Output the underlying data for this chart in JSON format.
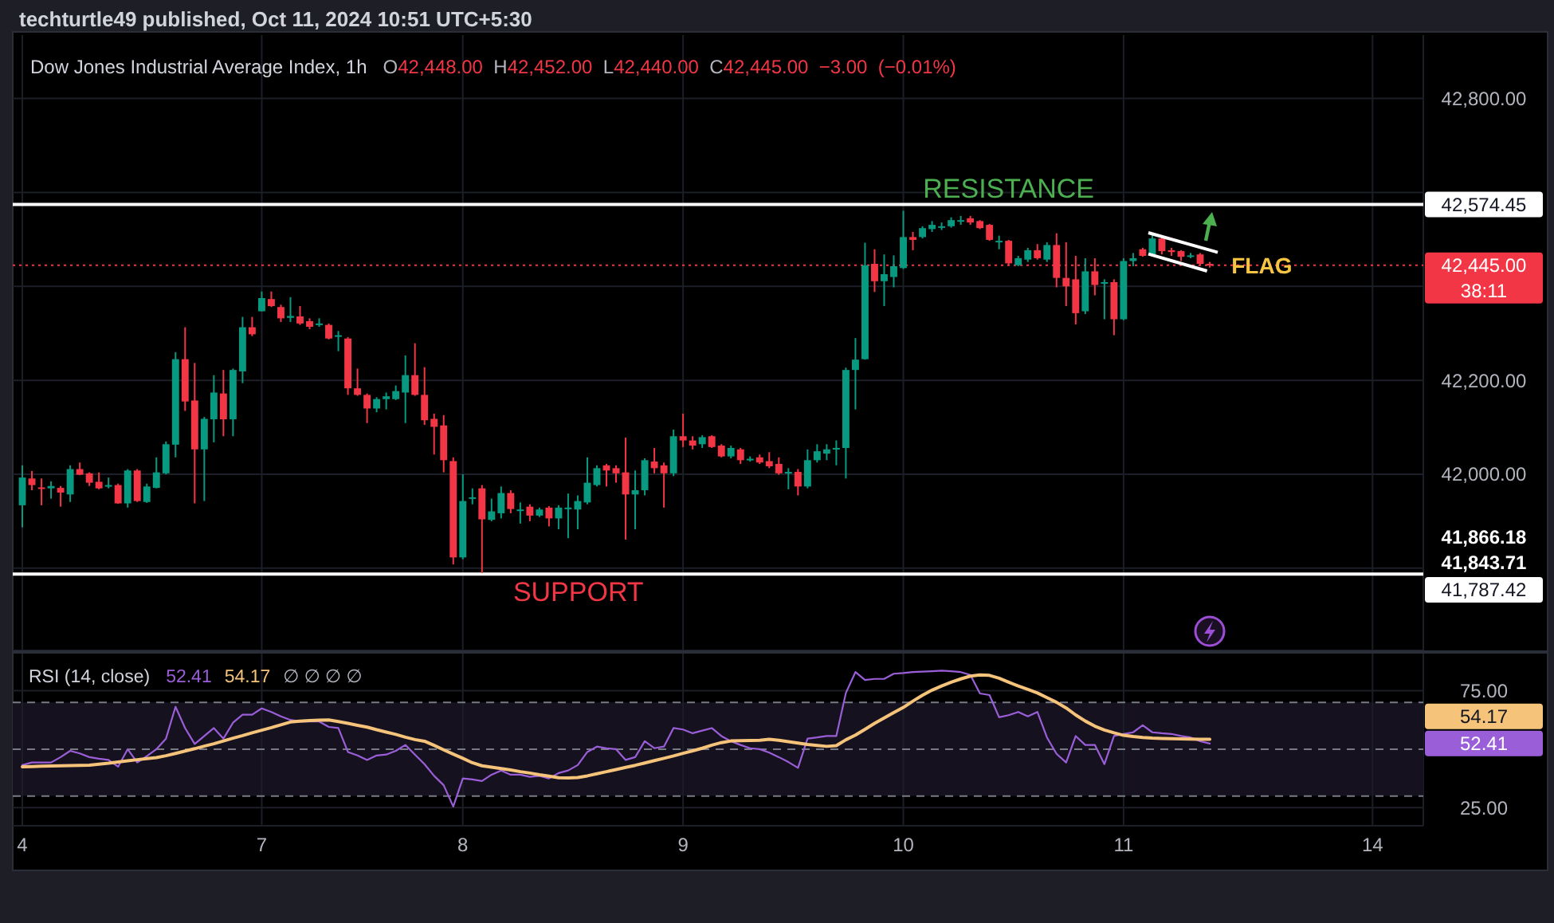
{
  "chart_data": [
    {
      "type": "candlestick",
      "title": "Dow Jones Industrial Average Index, 1h",
      "subtitle": "O42,448.00 H42,452.00 L42,440.00 C42,445.00 −3.00 (−0.01%)",
      "categories": [
        "4",
        null,
        null,
        null,
        null,
        null,
        null,
        null,
        null,
        null,
        null,
        null,
        null,
        null,
        null,
        null,
        null,
        null,
        null,
        null,
        null,
        null,
        null,
        null,
        null,
        "7",
        null,
        null,
        null,
        null,
        null,
        null,
        null,
        null,
        null,
        null,
        null,
        null,
        null,
        null,
        null,
        null,
        null,
        null,
        null,
        null,
        "8",
        null,
        null,
        null,
        null,
        null,
        null,
        null,
        null,
        null,
        null,
        null,
        null,
        null,
        null,
        null,
        null,
        null,
        null,
        null,
        null,
        null,
        null,
        "9",
        null,
        null,
        null,
        null,
        null,
        null,
        null,
        null,
        null,
        null,
        null,
        null,
        null,
        null,
        null,
        null,
        null,
        null,
        null,
        null,
        null,
        null,
        "10",
        null,
        null,
        null,
        null,
        null,
        null,
        null,
        null,
        null,
        null,
        null,
        null,
        null,
        null,
        null,
        null,
        null,
        null,
        null,
        null,
        null,
        null,
        "11",
        null,
        null,
        null,
        null,
        null,
        null,
        null,
        null,
        null,
        null,
        null,
        null,
        null,
        null,
        null,
        null,
        null,
        null,
        null,
        null,
        null,
        null,
        null,
        null,
        null,
        "14"
      ],
      "ohlc": [
        [
          41934,
          42019,
          41887,
          41993
        ],
        [
          41991,
          42007,
          41966,
          41977
        ],
        [
          41972,
          41991,
          41934,
          41969
        ],
        [
          41970,
          41985,
          41948,
          41975
        ],
        [
          41971,
          41975,
          41931,
          41961
        ],
        [
          41957,
          42019,
          41941,
          42011
        ],
        [
          42011,
          42025,
          41998,
          41999
        ],
        [
          42002,
          42004,
          41975,
          41982
        ],
        [
          41984,
          42004,
          41968,
          41970
        ],
        [
          41975,
          41993,
          41970,
          41977
        ],
        [
          41977,
          41980,
          41937,
          41938
        ],
        [
          41938,
          42011,
          41929,
          42008
        ],
        [
          42008,
          42011,
          41941,
          41943
        ],
        [
          41941,
          41980,
          41939,
          41974
        ],
        [
          41971,
          42036,
          41970,
          42004
        ],
        [
          42002,
          42070,
          42000,
          42064
        ],
        [
          42063,
          42260,
          42036,
          42245
        ],
        [
          42245,
          42313,
          42135,
          42155
        ],
        [
          42157,
          42237,
          41938,
          42053
        ],
        [
          42053,
          42122,
          41943,
          42118
        ],
        [
          42117,
          42211,
          42068,
          42174
        ],
        [
          42172,
          42222,
          42081,
          42117
        ],
        [
          42117,
          42225,
          42081,
          42222
        ],
        [
          42219,
          42335,
          42194,
          42313
        ],
        [
          42313,
          42335,
          42294,
          42298
        ],
        [
          42347,
          42389,
          42347,
          42375
        ],
        [
          42373,
          42389,
          42356,
          42358
        ],
        [
          42356,
          42361,
          42324,
          42332
        ],
        [
          42333,
          42377,
          42324,
          42337
        ],
        [
          42336,
          42358,
          42318,
          42321
        ],
        [
          42326,
          42332,
          42309,
          42314
        ],
        [
          42318,
          42332,
          42314,
          42321
        ],
        [
          42318,
          42321,
          42287,
          42289
        ],
        [
          42293,
          42305,
          42262,
          42296
        ],
        [
          42289,
          42292,
          42169,
          42183
        ],
        [
          42183,
          42225,
          42167,
          42169
        ],
        [
          42169,
          42172,
          42109,
          42140
        ],
        [
          42140,
          42164,
          42132,
          42160
        ],
        [
          42160,
          42174,
          42138,
          42166
        ],
        [
          42160,
          42189,
          42158,
          42177
        ],
        [
          42174,
          42253,
          42109,
          42211
        ],
        [
          42211,
          42279,
          42167,
          42169
        ],
        [
          42169,
          42228,
          42105,
          42115
        ],
        [
          42118,
          42129,
          42042,
          42101
        ],
        [
          42104,
          42126,
          42004,
          42030
        ],
        [
          42028,
          42036,
          41808,
          41823
        ],
        [
          41823,
          42000,
          41819,
          41943
        ],
        [
          41948,
          41970,
          41936,
          41951
        ],
        [
          41970,
          41977,
          41790,
          41904
        ],
        [
          41903,
          41948,
          41900,
          41921
        ],
        [
          41917,
          41974,
          41906,
          41960
        ],
        [
          41960,
          41966,
          41917,
          41926
        ],
        [
          41923,
          41940,
          41895,
          41925
        ],
        [
          41931,
          41936,
          41900,
          41912
        ],
        [
          41912,
          41929,
          41909,
          41925
        ],
        [
          41929,
          41932,
          41889,
          41906
        ],
        [
          41906,
          41934,
          41883,
          41929
        ],
        [
          41926,
          41959,
          41864,
          41929
        ],
        [
          41925,
          41955,
          41883,
          41943
        ],
        [
          41940,
          42036,
          41936,
          41982
        ],
        [
          41977,
          42019,
          41974,
          42013
        ],
        [
          42019,
          42022,
          41974,
          42008
        ],
        [
          42013,
          42019,
          41982,
          42002
        ],
        [
          42004,
          42078,
          41861,
          41957
        ],
        [
          41957,
          42008,
          41883,
          41966
        ],
        [
          41966,
          42034,
          41955,
          42030
        ],
        [
          42027,
          42056,
          42002,
          42013
        ],
        [
          42019,
          42025,
          41929,
          42002
        ],
        [
          42002,
          42095,
          41996,
          42081
        ],
        [
          42081,
          42129,
          42058,
          42072
        ],
        [
          42072,
          42081,
          42053,
          42061
        ],
        [
          42064,
          42083,
          42056,
          42079
        ],
        [
          42081,
          42083,
          42056,
          42058
        ],
        [
          42061,
          42064,
          42036,
          42038
        ],
        [
          42038,
          42061,
          42034,
          42056
        ],
        [
          42053,
          42056,
          42022,
          42030
        ],
        [
          42030,
          42038,
          42027,
          42033
        ],
        [
          42036,
          42042,
          42022,
          42025
        ],
        [
          42028,
          42047,
          42013,
          42017
        ],
        [
          42022,
          42036,
          41999,
          42002
        ],
        [
          42002,
          42013,
          41968,
          42005
        ],
        [
          42005,
          42011,
          41955,
          41974
        ],
        [
          41974,
          42053,
          41970,
          42030
        ],
        [
          42030,
          42064,
          42025,
          42049
        ],
        [
          42044,
          42064,
          42030,
          42053
        ],
        [
          42054,
          42072,
          42019,
          42056
        ],
        [
          42056,
          42227,
          41991,
          42222
        ],
        [
          42222,
          42290,
          42138,
          42244
        ],
        [
          42245,
          42493,
          42244,
          42445
        ],
        [
          42448,
          42479,
          42388,
          42411
        ],
        [
          42411,
          42468,
          42358,
          42426
        ],
        [
          42420,
          42466,
          42398,
          42443
        ],
        [
          42439,
          42561,
          42437,
          42505
        ],
        [
          42505,
          42516,
          42477,
          42499
        ],
        [
          42505,
          42528,
          42502,
          42524
        ],
        [
          42522,
          42539,
          42516,
          42531
        ],
        [
          42525,
          42536,
          42520,
          42528
        ],
        [
          42528,
          42547,
          42525,
          42541
        ],
        [
          42539,
          42550,
          42531,
          42541
        ],
        [
          42545,
          42550,
          42531,
          42536
        ],
        [
          42539,
          42541,
          42522,
          42524
        ],
        [
          42531,
          42533,
          42497,
          42499
        ],
        [
          42495,
          42508,
          42479,
          42497
        ],
        [
          42497,
          42499,
          42445,
          42449
        ],
        [
          42445,
          42465,
          42443,
          42460
        ],
        [
          42457,
          42482,
          42452,
          42477
        ],
        [
          42477,
          42490,
          42457,
          42460
        ],
        [
          42457,
          42494,
          42452,
          42488
        ],
        [
          42488,
          42513,
          42398,
          42418
        ],
        [
          42418,
          42494,
          42358,
          42400
        ],
        [
          42415,
          42465,
          42319,
          42343
        ],
        [
          42347,
          42460,
          42341,
          42432
        ],
        [
          42432,
          42460,
          42381,
          42403
        ],
        [
          42407,
          42415,
          42330,
          42409
        ],
        [
          42409,
          42415,
          42296,
          42330
        ],
        [
          42330,
          42460,
          42328,
          42454
        ],
        [
          42454,
          42471,
          42443,
          42460
        ],
        [
          42479,
          42482,
          42463,
          42465
        ],
        [
          42468,
          42513,
          42465,
          42502
        ],
        [
          42502,
          42505,
          42468,
          42475
        ],
        [
          42477,
          42482,
          42465,
          42473
        ],
        [
          42475,
          42477,
          42454,
          42463
        ],
        [
          42464,
          42471,
          42460,
          42466
        ],
        [
          42468,
          42471,
          42445,
          42448
        ],
        [
          42448,
          42452,
          42440,
          42445
        ],
        null,
        null,
        null,
        null,
        null,
        null,
        null,
        null,
        null,
        null,
        null,
        null,
        null,
        null,
        null,
        null,
        null
      ],
      "colors": [
        "#089981",
        "#f23645",
        "#f23645",
        "#089981",
        "#f23645",
        "#089981",
        "#f23645",
        "#f23645",
        "#f23645",
        "#089981",
        "#f23645",
        "#089981",
        "#f23645",
        "#089981",
        "#089981",
        "#089981",
        "#089981",
        "#f23645",
        "#f23645",
        "#089981",
        "#089981",
        "#f23645",
        "#089981",
        "#089981",
        "#f23645",
        "#089981",
        "#f23645",
        "#f23645",
        "#089981",
        "#f23645",
        "#f23645",
        "#089981",
        "#f23645",
        "#089981",
        "#f23645",
        "#f23645",
        "#f23645",
        "#089981",
        "#089981",
        "#089981",
        "#089981",
        "#f23645",
        "#f23645",
        "#f23645",
        "#f23645",
        "#f23645",
        "#089981",
        "#089981",
        "#f23645",
        "#089981",
        "#089981",
        "#f23645",
        "#089981",
        "#f23645",
        "#089981",
        "#f23645",
        "#089981",
        "#089981",
        "#089981",
        "#089981",
        "#089981",
        "#f23645",
        "#f23645",
        "#f23645",
        "#089981",
        "#089981",
        "#f23645",
        "#f23645",
        "#089981",
        "#f23645",
        "#f23645",
        "#089981",
        "#f23645",
        "#f23645",
        "#089981",
        "#f23645",
        "#089981",
        "#f23645",
        "#f23645",
        "#f23645",
        "#089981",
        "#f23645",
        "#089981",
        "#089981",
        "#089981",
        "#089981",
        "#089981",
        "#089981",
        "#089981",
        "#f23645",
        "#089981",
        "#089981",
        "#089981",
        "#f23645",
        "#089981",
        "#089981",
        "#089981",
        "#089981",
        "#089981",
        "#f23645",
        "#f23645",
        "#f23645",
        "#089981",
        "#f23645",
        "#089981",
        "#089981",
        "#f23645",
        "#089981",
        "#f23645",
        "#f23645",
        "#f23645",
        "#089981",
        "#f23645",
        "#089981",
        "#f23645",
        "#089981",
        "#089981",
        "#f23645",
        "#089981",
        "#f23645",
        "#f23645",
        "#f23645",
        "#089981",
        "#f23645",
        "#f23645",
        null,
        null,
        null,
        null,
        null,
        null,
        null,
        null,
        null,
        null,
        null,
        null,
        null,
        null,
        null,
        null,
        null
      ],
      "ylim": [
        41625,
        42935
      ],
      "yticks": [
        {
          "value": 41800,
          "label": null
        },
        {
          "value": 42000,
          "label": "42,000.00"
        },
        {
          "value": 42200,
          "label": "42,200.00"
        },
        {
          "value": 42400,
          "label": null
        },
        {
          "value": 42600,
          "label": null
        },
        {
          "value": 42800,
          "label": "42,800.00"
        }
      ],
      "grid": true,
      "tick_labels": "y",
      "ref_lines": [
        {
          "axis": "y",
          "value": 42574.45,
          "label": "42,574.45",
          "color": "#ffffff"
        },
        {
          "axis": "y",
          "value": 42445,
          "label": "42,445.00\n38:11",
          "color": "#f23645",
          "line_style": "dotted"
        },
        {
          "axis": "y",
          "value": 41787.42,
          "label": "41,787.42",
          "color": "#ffffff"
        }
      ],
      "annotations": [
        "techturtle49 published, Oct 11, 2024 10:51 UTC+5:30",
        "RESISTANCE",
        "SUPPORT",
        {
          "text": "FLAG",
          "y": 42445
        },
        "41,866.18",
        "41,843.71"
      ]
    },
    {
      "type": "line",
      "title": "RSI (14, close)",
      "categories": [
        "4",
        null,
        null,
        null,
        null,
        null,
        null,
        null,
        null,
        null,
        null,
        null,
        null,
        null,
        null,
        null,
        null,
        null,
        null,
        null,
        null,
        null,
        null,
        null,
        null,
        "7",
        null,
        null,
        null,
        null,
        null,
        null,
        null,
        null,
        null,
        null,
        null,
        null,
        null,
        null,
        null,
        null,
        null,
        null,
        null,
        null,
        "8",
        null,
        null,
        null,
        null,
        null,
        null,
        null,
        null,
        null,
        null,
        null,
        null,
        null,
        null,
        null,
        null,
        null,
        null,
        null,
        null,
        null,
        null,
        "9",
        null,
        null,
        null,
        null,
        null,
        null,
        null,
        null,
        null,
        null,
        null,
        null,
        null,
        null,
        null,
        null,
        null,
        null,
        null,
        null,
        null,
        null,
        "10",
        null,
        null,
        null,
        null,
        null,
        null,
        null,
        null,
        null,
        null,
        null,
        null,
        null,
        null,
        null,
        null,
        null,
        null,
        null,
        null,
        null,
        null,
        "11",
        null,
        null,
        null,
        null,
        null,
        null,
        null,
        null,
        null,
        null,
        null,
        null,
        null,
        null,
        null,
        null,
        null,
        null,
        null,
        null,
        null,
        null,
        null,
        null,
        null,
        "14"
      ],
      "series": [
        {
          "color": "#9a5fd8",
          "values": [
            43.2,
            44.3,
            44.3,
            44.3,
            46.6,
            49.3,
            48.2,
            46.6,
            45.9,
            45.4,
            42.5,
            50.0,
            44.3,
            47.0,
            50.0,
            54.5,
            68.1,
            59.0,
            52.2,
            55.6,
            59.0,
            54.5,
            61.3,
            64.7,
            64.7,
            67.4,
            65.9,
            64.0,
            62.5,
            61.8,
            61.8,
            61.8,
            59.5,
            59.0,
            48.8,
            47.3,
            45.4,
            47.3,
            47.7,
            49.3,
            51.8,
            47.7,
            43.6,
            38.6,
            34.6,
            25.5,
            37.5,
            37.1,
            36.4,
            39.1,
            40.9,
            39.1,
            39.1,
            38.2,
            38.6,
            37.5,
            39.8,
            40.9,
            43.2,
            48.8,
            51.1,
            50.4,
            50.0,
            45.4,
            46.6,
            53.4,
            50.4,
            51.1,
            59.0,
            58.4,
            56.8,
            57.9,
            59.0,
            55.6,
            53.4,
            51.8,
            50.4,
            50.0,
            48.5,
            46.6,
            44.5,
            42.0,
            54.5,
            55.0,
            55.6,
            55.6,
            74.0,
            82.9,
            79.5,
            80.0,
            80.0,
            82.2,
            82.5,
            82.9,
            83.1,
            83.3,
            83.5,
            83.3,
            82.9,
            81.7,
            73.8,
            73.1,
            63.6,
            64.5,
            65.9,
            64.0,
            65.9,
            55.0,
            48.0,
            44.3,
            55.6,
            51.8,
            51.8,
            43.6,
            55.6,
            56.5,
            57.2,
            60.2,
            57.2,
            56.8,
            56.5,
            55.6,
            55.0,
            53.4,
            52.4,
            null,
            null,
            null,
            null,
            null,
            null,
            null,
            null,
            null,
            null,
            null,
            null,
            null,
            null,
            null,
            null,
            null
          ]
        },
        {
          "color": "#f5c37a",
          "values": [
            42.5,
            42.6,
            42.7,
            42.8,
            42.9,
            43.0,
            43.1,
            43.2,
            43.6,
            44.0,
            44.5,
            45.0,
            45.5,
            46.0,
            46.4,
            47.2,
            48.2,
            49.2,
            50.2,
            51.3,
            52.3,
            53.5,
            54.7,
            55.8,
            57.0,
            58.1,
            59.2,
            60.4,
            61.6,
            62.0,
            62.2,
            62.4,
            62.5,
            61.8,
            61.0,
            60.2,
            59.4,
            58.3,
            57.3,
            56.3,
            55.1,
            54.1,
            53.4,
            51.6,
            49.7,
            47.9,
            46.1,
            44.2,
            42.9,
            42.3,
            41.7,
            41.1,
            40.4,
            39.8,
            39.1,
            38.5,
            37.8,
            37.7,
            37.9,
            38.6,
            39.5,
            40.4,
            41.3,
            42.2,
            43.1,
            44.1,
            45.1,
            46.1,
            47.1,
            48.2,
            49.3,
            50.4,
            51.7,
            52.8,
            53.5,
            53.6,
            53.7,
            53.8,
            54.2,
            53.8,
            53.2,
            52.6,
            52.0,
            51.6,
            51.2,
            51.5,
            54.0,
            56.0,
            58.5,
            61.0,
            63.3,
            65.6,
            67.8,
            70.5,
            73.0,
            75.2,
            77.0,
            78.6,
            80.0,
            81.2,
            81.7,
            81.5,
            80.3,
            78.6,
            77.0,
            75.5,
            74.0,
            72.0,
            70.0,
            67.6,
            64.6,
            62.0,
            59.8,
            58.2,
            57.0,
            55.9,
            55.4,
            55.0,
            54.7,
            54.6,
            54.5,
            54.4,
            54.3,
            54.2,
            54.2,
            null,
            null,
            null,
            null,
            null,
            null,
            null,
            null,
            null,
            null,
            null,
            null,
            null,
            null,
            null,
            null,
            null
          ]
        }
      ],
      "ylim": [
        17.3,
        90.8
      ],
      "yticks": [
        {
          "value": 75,
          "label": "75.00"
        },
        {
          "value": 25,
          "label": "25.00"
        }
      ],
      "grid": true,
      "ref_lines": [
        {
          "axis": "y",
          "value": 70,
          "color": "#787b86",
          "line_style": "dashed"
        },
        {
          "axis": "y",
          "value": 50,
          "color": "#787b86",
          "line_style": "dashed"
        },
        {
          "axis": "y",
          "value": 30,
          "color": "#787b86",
          "line_style": "dashed"
        }
      ],
      "bands": [
        {
          "axis": "y",
          "from": 30,
          "to": 70,
          "color": "#16111f"
        }
      ],
      "annotations": [
        "52.41",
        "54.17",
        "∅ ∅ ∅ ∅"
      ]
    }
  ]
}
